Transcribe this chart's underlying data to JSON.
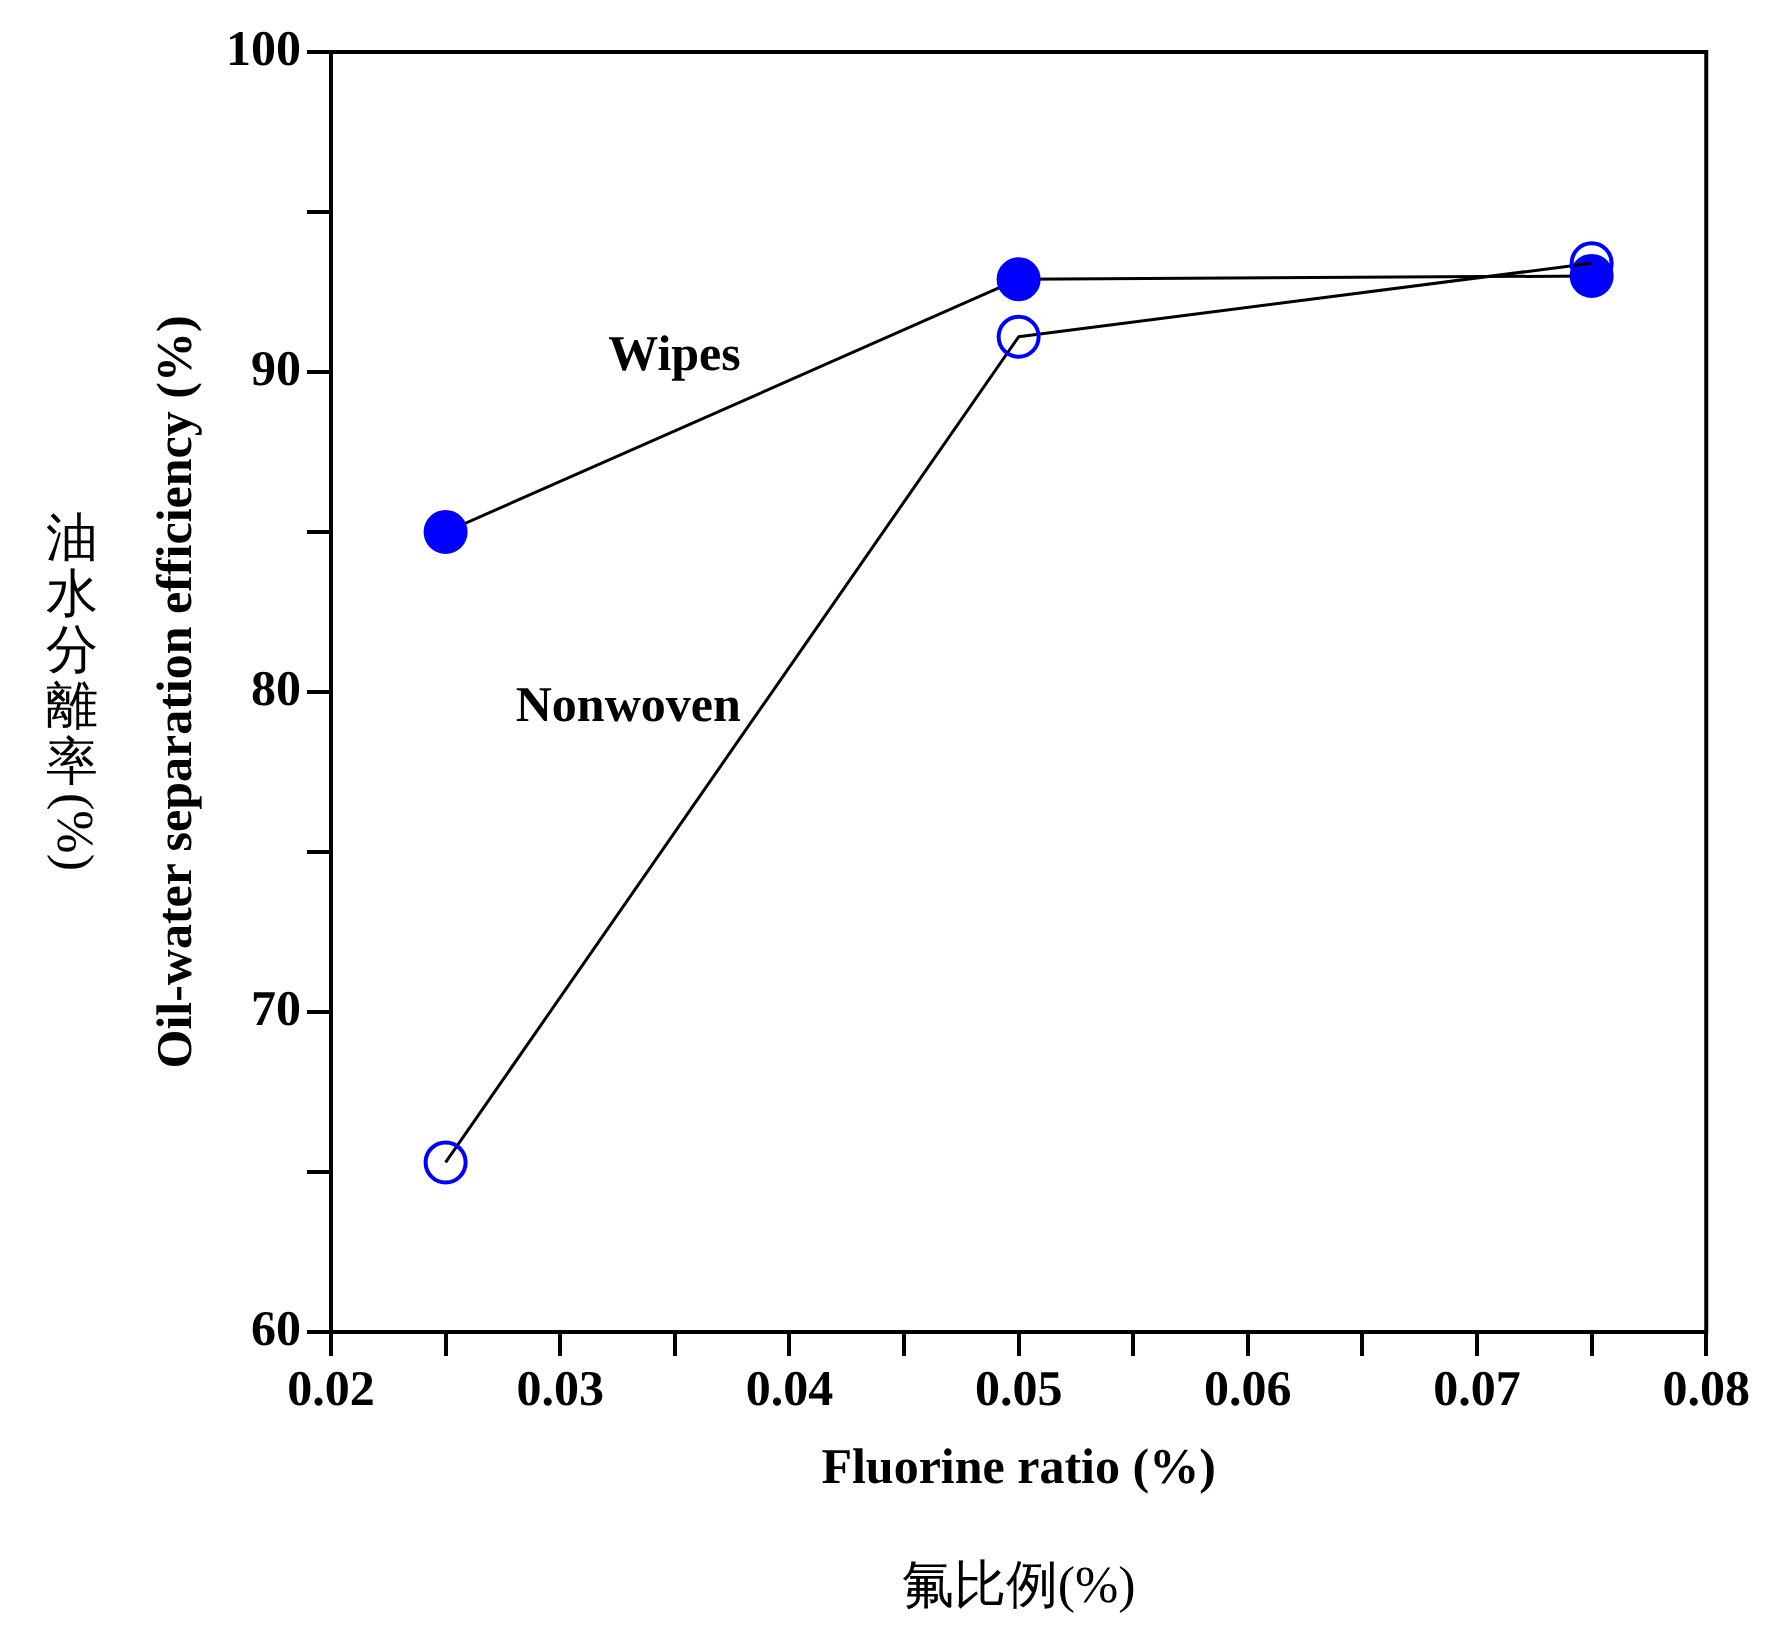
{
  "chart_data": {
    "type": "line",
    "xlabel": "Fluorine ratio (%)",
    "ylabel": "Oil-water separation efficiency (%)",
    "annotations": [
      "油水分離率(%)",
      "氟比例(%)"
    ],
    "x": [
      0.025,
      0.05,
      0.075
    ],
    "series": [
      {
        "name": "Wipes",
        "color": "#0000ff",
        "values": [
          85.0,
          92.9,
          93.0
        ]
      },
      {
        "name": "Nonwoven",
        "color": "#0000ff",
        "values": [
          65.3,
          91.1,
          93.4
        ]
      }
    ],
    "xlim": [
      0.02,
      0.08
    ],
    "xticks": [
      {
        "value": 0.02,
        "label": "0.02"
      },
      {
        "value": 0.025,
        "label": null
      },
      {
        "value": 0.03,
        "label": "0.03"
      },
      {
        "value": 0.035,
        "label": null
      },
      {
        "value": 0.04,
        "label": "0.04"
      },
      {
        "value": 0.045,
        "label": null
      },
      {
        "value": 0.05,
        "label": "0.05"
      },
      {
        "value": 0.055,
        "label": null
      },
      {
        "value": 0.06,
        "label": "0.06"
      },
      {
        "value": 0.065,
        "label": null
      },
      {
        "value": 0.07,
        "label": "0.07"
      },
      {
        "value": 0.075,
        "label": null
      },
      {
        "value": 0.08,
        "label": "0.08"
      }
    ],
    "ylim": [
      60,
      100
    ],
    "yticks": [
      60,
      {
        "value": 65,
        "label": null
      },
      70,
      {
        "value": 75,
        "label": null
      },
      80,
      {
        "value": 85,
        "label": null
      },
      90,
      {
        "value": 95,
        "label": null
      },
      100
    ],
    "grid": false,
    "legend": false,
    "marker": "circle",
    "line_style": "solid"
  }
}
